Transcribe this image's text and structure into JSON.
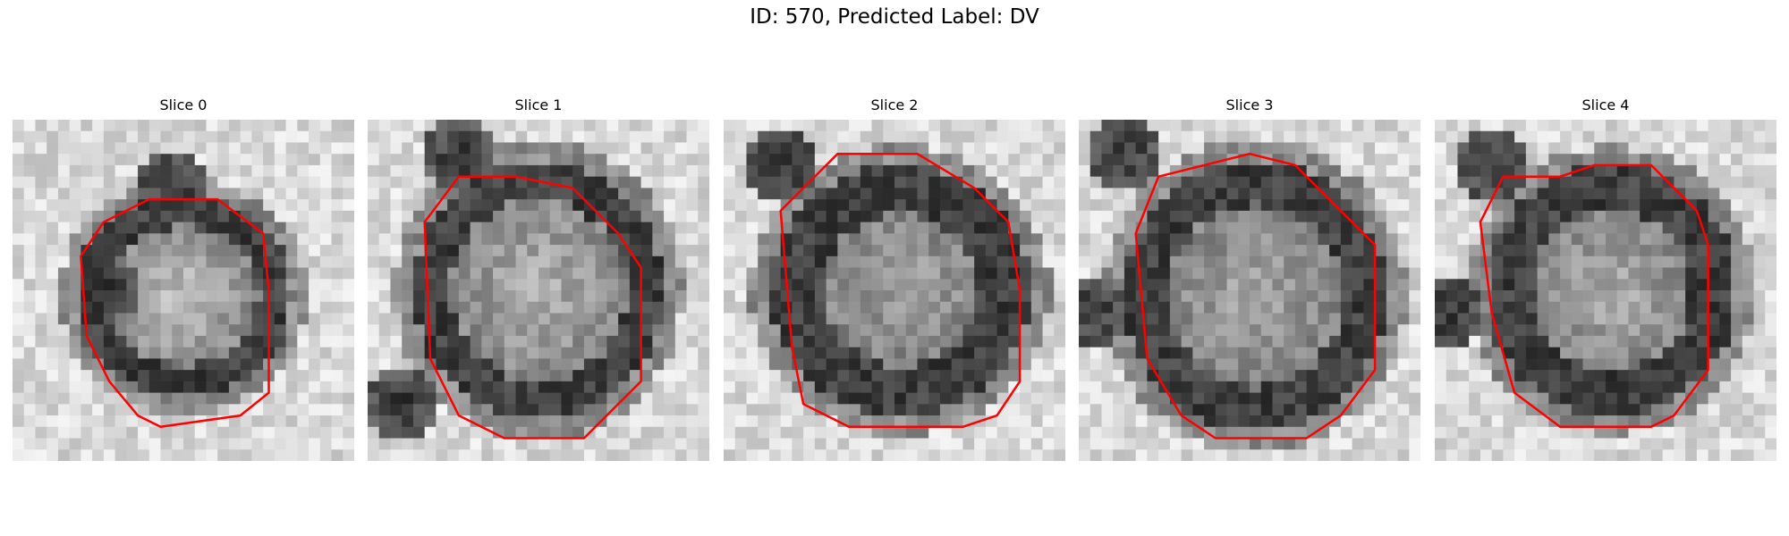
{
  "figure": {
    "title": "ID: 570, Predicted Label: DV"
  },
  "panels": [
    {
      "title": "Slice 0"
    },
    {
      "title": "Slice 1"
    },
    {
      "title": "Slice 2"
    },
    {
      "title": "Slice 3"
    },
    {
      "title": "Slice 4"
    }
  ],
  "colors": {
    "contour": "#ff0000",
    "background": "#ffffff",
    "colormap": "grayscale"
  }
}
